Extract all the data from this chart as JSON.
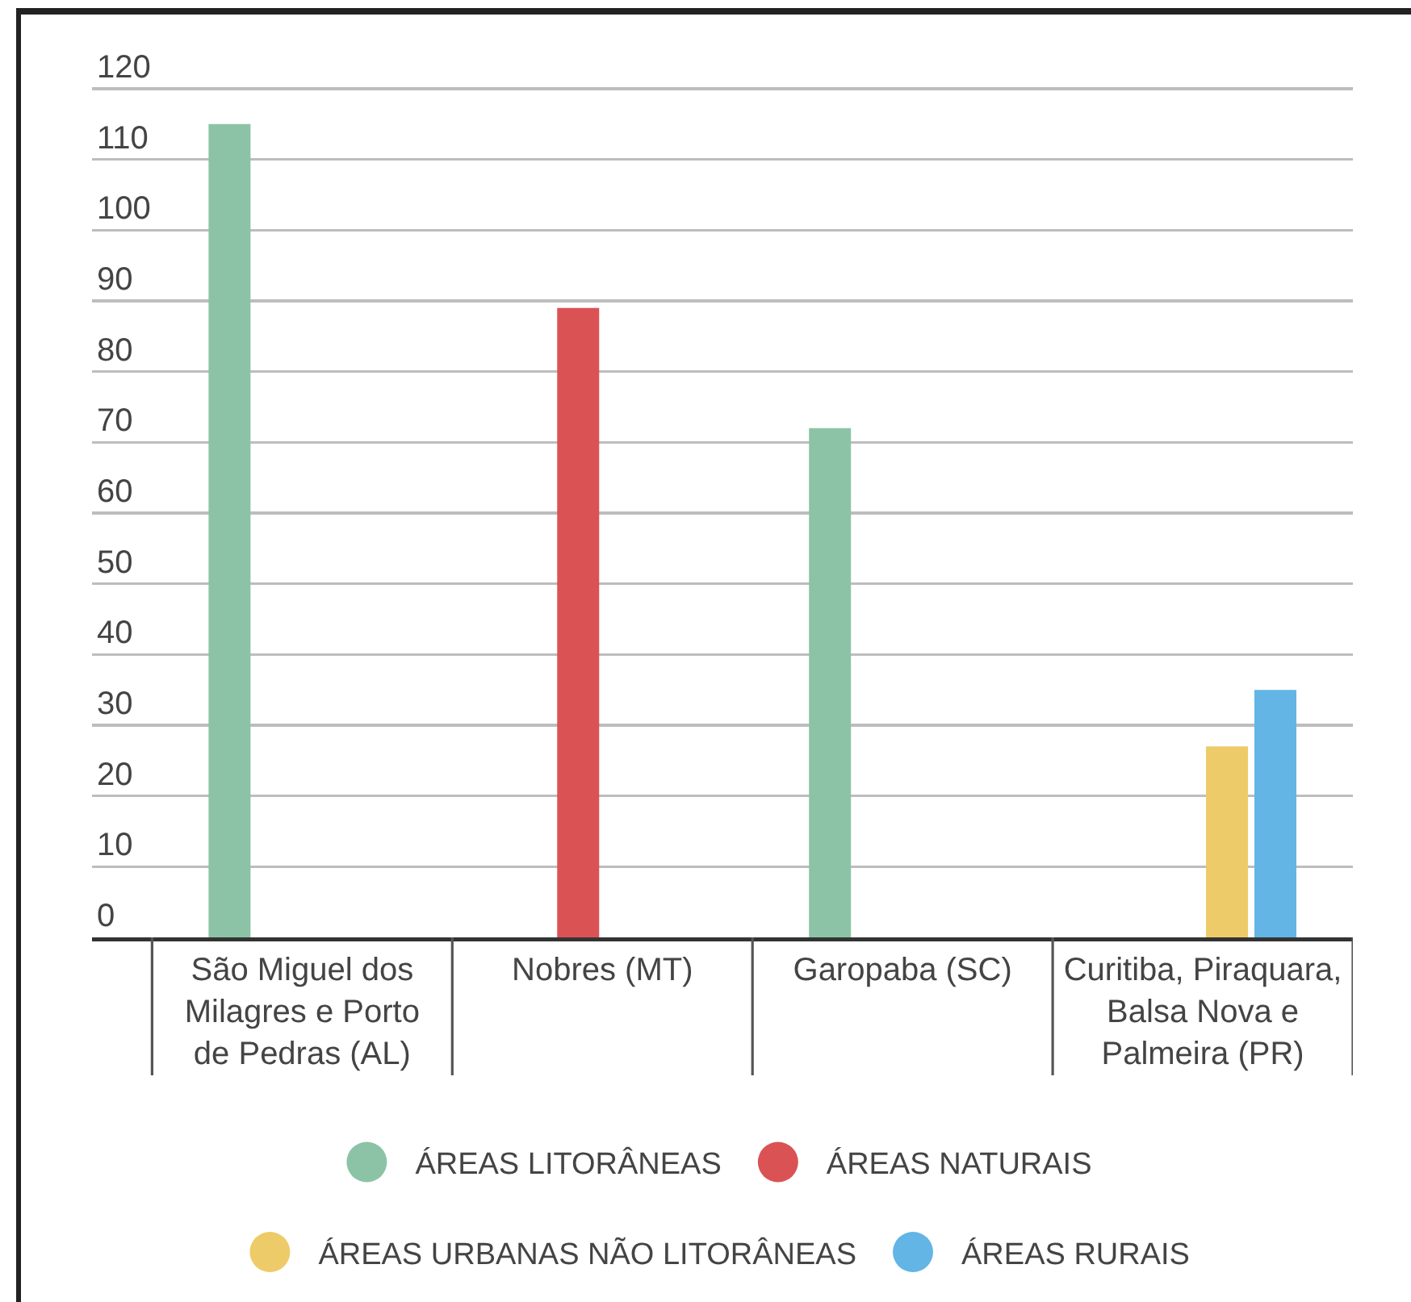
{
  "chart_data": {
    "type": "bar",
    "categories": [
      "São Miguel dos Milagres e Porto de Pedras (AL)",
      "Nobres (MT)",
      "Garopaba (SC)",
      "Curitiba, Piraquara, Balsa Nova e Palmeira (PR)"
    ],
    "series": [
      {
        "name": "ÁREAS LITORÂNEAS",
        "color": "#8cc3a6",
        "values": [
          115,
          null,
          72,
          null
        ]
      },
      {
        "name": "ÁREAS NATURAIS",
        "color": "#db5254",
        "values": [
          null,
          89,
          null,
          null
        ]
      },
      {
        "name": "ÁREAS URBANAS NÃO LITORÂNEAS",
        "color": "#eecb69",
        "values": [
          null,
          null,
          null,
          27
        ]
      },
      {
        "name": "ÁREAS RURAIS",
        "color": "#62b5e5",
        "values": [
          null,
          null,
          null,
          35
        ]
      }
    ],
    "ylim": [
      0,
      120
    ],
    "yticks": [
      0,
      10,
      20,
      30,
      40,
      50,
      60,
      70,
      80,
      90,
      100,
      110,
      120
    ],
    "grid": "y",
    "legend": "bottom"
  }
}
